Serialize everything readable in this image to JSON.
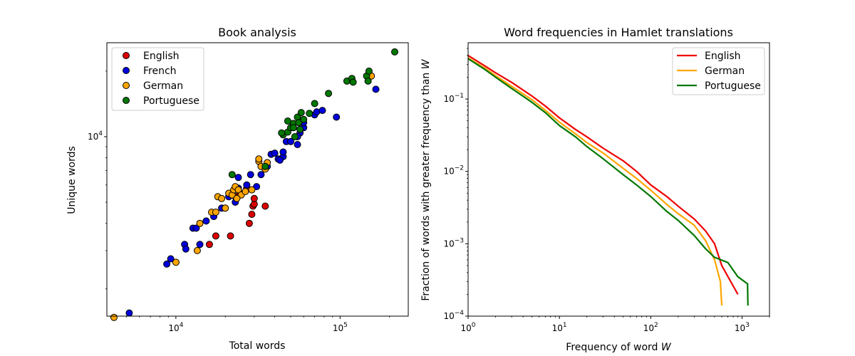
{
  "chart_data": [
    {
      "type": "scatter",
      "title": "Book analysis",
      "xlabel": "Total words",
      "ylabel": "Unique words",
      "xscale": "log",
      "yscale": "log",
      "xlim": [
        3800,
        260000
      ],
      "ylim": [
        1500,
        27000
      ],
      "xticks": [
        {
          "value": 10000,
          "base": "10",
          "exp": "4"
        },
        {
          "value": 100000,
          "base": "10",
          "exp": "5"
        }
      ],
      "yticks": [
        {
          "value": 10000,
          "base": "10",
          "exp": "4"
        }
      ],
      "legend_position": "top-left",
      "series": [
        {
          "name": "English",
          "color": "#dd0000",
          "points": [
            [
              16000,
              3200
            ],
            [
              17500,
              3500
            ],
            [
              21500,
              3500
            ],
            [
              28000,
              4000
            ],
            [
              29000,
              4400
            ],
            [
              29500,
              4800
            ],
            [
              30000,
              4900
            ],
            [
              30000,
              5200
            ],
            [
              35000,
              4800
            ],
            [
              27000,
              5800
            ],
            [
              23000,
              5300
            ],
            [
              24500,
              5500
            ]
          ]
        },
        {
          "name": "French",
          "color": "#0000dd",
          "points": [
            [
              5200,
              1550
            ],
            [
              8800,
              2600
            ],
            [
              9300,
              2750
            ],
            [
              11300,
              3200
            ],
            [
              11500,
              3050
            ],
            [
              12700,
              3800
            ],
            [
              13300,
              3800
            ],
            [
              14000,
              3200
            ],
            [
              15300,
              4100
            ],
            [
              17000,
              4300
            ],
            [
              19000,
              4700
            ],
            [
              21000,
              5300
            ],
            [
              23000,
              5000
            ],
            [
              24000,
              6500
            ],
            [
              27000,
              6000
            ],
            [
              28500,
              6700
            ],
            [
              31000,
              5900
            ],
            [
              36000,
              7300
            ],
            [
              38000,
              8300
            ],
            [
              40000,
              8400
            ],
            [
              42000,
              7900
            ],
            [
              45000,
              8100
            ],
            [
              45000,
              8500
            ],
            [
              47000,
              9500
            ],
            [
              50000,
              9500
            ],
            [
              55000,
              9200
            ],
            [
              57000,
              10400
            ],
            [
              60000,
              11000
            ],
            [
              60000,
              11600
            ],
            [
              70000,
              12600
            ],
            [
              72000,
              13000
            ],
            [
              78000,
              13200
            ],
            [
              95000,
              12300
            ],
            [
              165000,
              16500
            ],
            [
              33000,
              6700
            ],
            [
              43000,
              7800
            ],
            [
              55000,
              10000
            ],
            [
              24000,
              5800
            ]
          ]
        },
        {
          "name": "German",
          "color": "#ffa500",
          "points": [
            [
              4200,
              1480
            ],
            [
              10000,
              2650
            ],
            [
              13500,
              3000
            ],
            [
              14000,
              4000
            ],
            [
              16500,
              4500
            ],
            [
              17500,
              4500
            ],
            [
              18000,
              5300
            ],
            [
              19000,
              5200
            ],
            [
              20000,
              4700
            ],
            [
              21000,
              5500
            ],
            [
              22000,
              5400
            ],
            [
              22500,
              5700
            ],
            [
              23000,
              5900
            ],
            [
              24000,
              5700
            ],
            [
              25000,
              5400
            ],
            [
              26500,
              5600
            ],
            [
              29000,
              5700
            ],
            [
              32000,
              7700
            ],
            [
              32000,
              7900
            ],
            [
              33000,
              7300
            ],
            [
              35000,
              7100
            ],
            [
              36000,
              7600
            ],
            [
              23500,
              5200
            ],
            [
              155000,
              19000
            ]
          ]
        },
        {
          "name": "Portuguese",
          "color": "#007700",
          "points": [
            [
              22000,
              6700
            ],
            [
              35000,
              7300
            ],
            [
              45000,
              10200
            ],
            [
              48000,
              10500
            ],
            [
              50000,
              11000
            ],
            [
              52000,
              11500
            ],
            [
              53000,
              10000
            ],
            [
              55000,
              12300
            ],
            [
              57000,
              10800
            ],
            [
              58000,
              12900
            ],
            [
              65000,
              12800
            ],
            [
              70000,
              14200
            ],
            [
              85000,
              15800
            ],
            [
              110000,
              18000
            ],
            [
              118000,
              18500
            ],
            [
              120000,
              17800
            ],
            [
              145000,
              19000
            ],
            [
              148000,
              18000
            ],
            [
              150000,
              20000
            ],
            [
              215000,
              24500
            ],
            [
              48000,
              11800
            ],
            [
              52000,
              11000
            ],
            [
              56000,
              11600
            ],
            [
              60000,
              12000
            ],
            [
              44000,
              10400
            ]
          ]
        }
      ]
    },
    {
      "type": "line",
      "title_prefix": "Word frequencies in Hamlet translations",
      "xlabel_prefix": "Frequency of word ",
      "xlabel_var": "W",
      "ylabel_prefix": "Fraction of words with greater frequency than ",
      "ylabel_var": "W",
      "xscale": "log",
      "yscale": "log",
      "xlim": [
        1,
        2000
      ],
      "ylim": [
        0.0001,
        0.6
      ],
      "xticks": [
        {
          "value": 1,
          "base": "10",
          "exp": "0"
        },
        {
          "value": 10,
          "base": "10",
          "exp": "1"
        },
        {
          "value": 100,
          "base": "10",
          "exp": "2"
        },
        {
          "value": 1000,
          "base": "10",
          "exp": "3"
        }
      ],
      "yticks": [
        {
          "value": 0.0001,
          "base": "10",
          "exp": "−4"
        },
        {
          "value": 0.001,
          "base": "10",
          "exp": "−3"
        },
        {
          "value": 0.01,
          "base": "10",
          "exp": "−2"
        },
        {
          "value": 0.1,
          "base": "10",
          "exp": "−1"
        }
      ],
      "legend_position": "top-right",
      "series": [
        {
          "name": "English",
          "color": "#ee0000",
          "points": [
            [
              1,
              0.4
            ],
            [
              1.5,
              0.29
            ],
            [
              2,
              0.23
            ],
            [
              3,
              0.17
            ],
            [
              5,
              0.11
            ],
            [
              7,
              0.08
            ],
            [
              10,
              0.055
            ],
            [
              15,
              0.038
            ],
            [
              20,
              0.03
            ],
            [
              30,
              0.021
            ],
            [
              50,
              0.014
            ],
            [
              70,
              0.01
            ],
            [
              100,
              0.0065
            ],
            [
              150,
              0.0045
            ],
            [
              200,
              0.0033
            ],
            [
              300,
              0.0022
            ],
            [
              400,
              0.0015
            ],
            [
              500,
              0.001
            ],
            [
              600,
              0.0005
            ],
            [
              900,
              0.0002
            ]
          ]
        },
        {
          "name": "German",
          "color": "#ffa500",
          "points": [
            [
              1,
              0.37
            ],
            [
              1.5,
              0.27
            ],
            [
              2,
              0.21
            ],
            [
              3,
              0.15
            ],
            [
              5,
              0.098
            ],
            [
              7,
              0.07
            ],
            [
              10,
              0.048
            ],
            [
              15,
              0.033
            ],
            [
              20,
              0.025
            ],
            [
              30,
              0.018
            ],
            [
              50,
              0.011
            ],
            [
              70,
              0.008
            ],
            [
              100,
              0.0055
            ],
            [
              150,
              0.0035
            ],
            [
              200,
              0.0026
            ],
            [
              300,
              0.0018
            ],
            [
              400,
              0.0011
            ],
            [
              500,
              0.0006
            ],
            [
              580,
              0.0003
            ],
            [
              600,
              0.00014
            ]
          ]
        },
        {
          "name": "Portuguese",
          "color": "#007700",
          "points": [
            [
              1,
              0.36
            ],
            [
              1.5,
              0.26
            ],
            [
              2,
              0.2
            ],
            [
              3,
              0.14
            ],
            [
              5,
              0.09
            ],
            [
              7,
              0.065
            ],
            [
              10,
              0.043
            ],
            [
              15,
              0.03
            ],
            [
              20,
              0.022
            ],
            [
              30,
              0.015
            ],
            [
              50,
              0.009
            ],
            [
              70,
              0.0065
            ],
            [
              100,
              0.0045
            ],
            [
              150,
              0.0028
            ],
            [
              200,
              0.0021
            ],
            [
              300,
              0.0013
            ],
            [
              400,
              0.00085
            ],
            [
              500,
              0.00065
            ],
            [
              700,
              0.00055
            ],
            [
              900,
              0.00035
            ],
            [
              1150,
              0.00028
            ],
            [
              1160,
              0.00014
            ]
          ]
        }
      ]
    }
  ]
}
